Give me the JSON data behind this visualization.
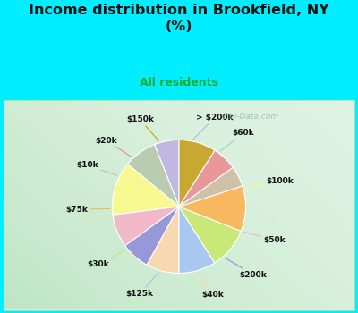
{
  "title": "Income distribution in Brookfield, NY\n(%)",
  "subtitle": "All residents",
  "labels": [
    "> $200k",
    "$60k",
    "$100k",
    "$50k",
    "$200k",
    "$40k",
    "$125k",
    "$30k",
    "$75k",
    "$10k",
    "$20k",
    "$150k"
  ],
  "values": [
    6,
    8,
    13,
    8,
    7,
    8,
    9,
    10,
    11,
    5,
    6,
    9
  ],
  "colors": [
    "#c0b8e0",
    "#b8ccb0",
    "#f8f890",
    "#f0b8c8",
    "#9898d8",
    "#f8d8b0",
    "#a8c8f0",
    "#c8e878",
    "#f8b860",
    "#d0c0a8",
    "#e89898",
    "#c8a830"
  ],
  "bg_top": "#00eeff",
  "bg_chart_color": "#d8f0e0",
  "title_color": "#111111",
  "subtitle_color": "#22aa22",
  "watermark": "City-Data.com",
  "startangle": 90,
  "label_line_colors": [
    "#c0b8e0",
    "#b8ccb0",
    "#f8f890",
    "#f0b8c8",
    "#9898d8",
    "#f8d8b0",
    "#a8c8f0",
    "#c8e878",
    "#f8b860",
    "#d0c0a8",
    "#e89898",
    "#c8a830"
  ]
}
